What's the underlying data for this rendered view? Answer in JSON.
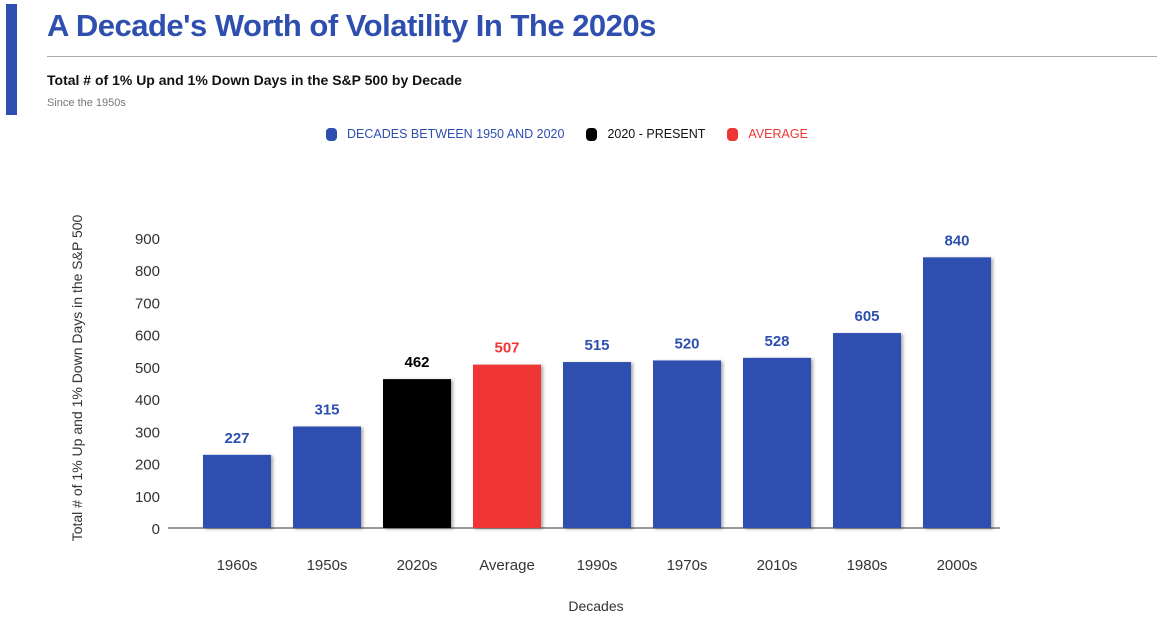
{
  "header": {
    "title": "A Decade's Worth of Volatility In The 2020s",
    "subtitle": "Total # of 1% Up and 1% Down Days in the S&P 500 by Decade",
    "note": "Since the 1950s"
  },
  "legend": [
    {
      "label": "DECADES BETWEEN 1950 AND 2020",
      "color": "#2E4FB0"
    },
    {
      "label": "2020 - PRESENT",
      "color": "#000000"
    },
    {
      "label": "AVERAGE",
      "color": "#F03535"
    }
  ],
  "chart_data": {
    "type": "bar",
    "categories": [
      "1960s",
      "1950s",
      "2020s",
      "Average",
      "1990s",
      "1970s",
      "2010s",
      "1980s",
      "2000s"
    ],
    "values": [
      227,
      315,
      462,
      507,
      515,
      520,
      528,
      605,
      840
    ],
    "colors": [
      "#2E4FB0",
      "#2E4FB0",
      "#000000",
      "#F03535",
      "#2E4FB0",
      "#2E4FB0",
      "#2E4FB0",
      "#2E4FB0",
      "#2E4FB0"
    ],
    "xlabel": "Decades",
    "ylabel": "Total # of 1% Up and 1% Down Days in the S&P 500",
    "ylim": [
      0,
      900
    ],
    "yticks": [
      "0",
      "100",
      "200",
      "300",
      "400",
      "500",
      "600",
      "700",
      "800",
      "900"
    ],
    "grid": false,
    "legend_position": "top"
  }
}
